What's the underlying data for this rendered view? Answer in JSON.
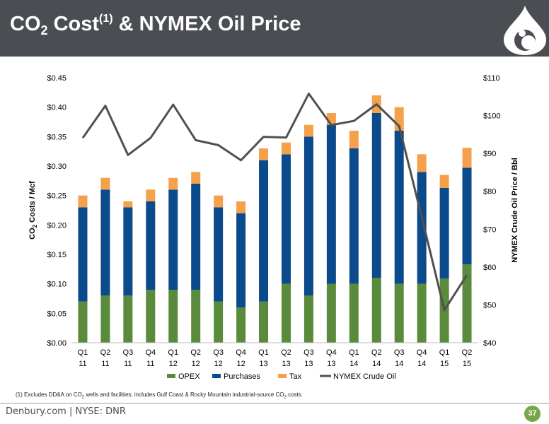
{
  "header": {
    "title_part1": "CO",
    "title_sub": "2",
    "title_part2": " Cost",
    "title_sup": "(1)",
    "title_part3": " & NYMEX Oil Price"
  },
  "footnote": {
    "prefix": "(1)  Excludes DD&A on CO",
    "sub": "2",
    "middle": " wells and facilities; includes Gulf Coast & Rocky Mountain industrial-source CO",
    "sub2": "2",
    "suffix": " costs."
  },
  "footer": {
    "company": "Denbury.com  |  NYSE: DNR",
    "page_number": "37"
  },
  "colors": {
    "header_bg": "#4a4d52",
    "opex": "#5a8a3c",
    "purchases": "#0b4a8b",
    "tax": "#f5a04a",
    "crude": "#505050",
    "brand_green": "#78a54a"
  },
  "icons": [
    "denbury-drop-logo-icon"
  ],
  "chart_data": {
    "type": "bar",
    "stacked": true,
    "categories": [
      [
        "Q1",
        "11"
      ],
      [
        "Q2",
        "11"
      ],
      [
        "Q3",
        "11"
      ],
      [
        "Q4",
        "11"
      ],
      [
        "Q1",
        "12"
      ],
      [
        "Q2",
        "12"
      ],
      [
        "Q3",
        "12"
      ],
      [
        "Q4",
        "12"
      ],
      [
        "Q1",
        "13"
      ],
      [
        "Q2",
        "13"
      ],
      [
        "Q3",
        "13"
      ],
      [
        "Q4",
        "13"
      ],
      [
        "Q1",
        "14"
      ],
      [
        "Q2",
        "14"
      ],
      [
        "Q3",
        "14"
      ],
      [
        "Q4",
        "14"
      ],
      [
        "Q1",
        "15"
      ],
      [
        "Q2",
        "15"
      ]
    ],
    "series": [
      {
        "name": "OPEX",
        "color": "#5a8a3c",
        "values": [
          0.07,
          0.08,
          0.08,
          0.09,
          0.09,
          0.09,
          0.07,
          0.06,
          0.07,
          0.1,
          0.08,
          0.1,
          0.1,
          0.11,
          0.1,
          0.1,
          0.109,
          0.133
        ]
      },
      {
        "name": "Purchases",
        "color": "#0b4a8b",
        "values": [
          0.16,
          0.18,
          0.15,
          0.15,
          0.17,
          0.18,
          0.16,
          0.16,
          0.24,
          0.22,
          0.27,
          0.27,
          0.23,
          0.28,
          0.26,
          0.19,
          0.154,
          0.164
        ]
      },
      {
        "name": "Tax",
        "color": "#f5a04a",
        "values": [
          0.02,
          0.02,
          0.01,
          0.02,
          0.02,
          0.02,
          0.02,
          0.02,
          0.02,
          0.02,
          0.02,
          0.02,
          0.03,
          0.03,
          0.04,
          0.03,
          0.022,
          0.034
        ]
      }
    ],
    "line_series": {
      "name": "NYMEX Crude Oil",
      "color": "#505050",
      "axis": "right",
      "values": [
        94.1,
        102.6,
        89.6,
        94.1,
        102.9,
        93.5,
        92.2,
        88.2,
        94.4,
        94.2,
        105.8,
        97.5,
        98.6,
        103.0,
        97.2,
        73.2,
        48.6,
        57.9
      ]
    },
    "ylabel": "CO2 Costs / Mcf",
    "ylabel_main": "CO",
    "ylabel_sub": "2",
    "ylabel_rest": " Costs / Mcf",
    "y2label": "NYMEX Crude Oil Price / Bbl",
    "ylim": [
      0,
      0.45
    ],
    "y2lim": [
      40,
      110
    ],
    "yticks": [
      "$0.00",
      "$0.05",
      "$0.10",
      "$0.15",
      "$0.20",
      "$0.25",
      "$0.30",
      "$0.35",
      "$0.40",
      "$0.45"
    ],
    "y2ticks": [
      "$40",
      "$50",
      "$60",
      "$70",
      "$80",
      "$90",
      "$100",
      "$110"
    ],
    "legend": [
      "OPEX",
      "Purchases",
      "Tax",
      "NYMEX Crude Oil"
    ],
    "legend_position": "bottom",
    "grid": false
  }
}
